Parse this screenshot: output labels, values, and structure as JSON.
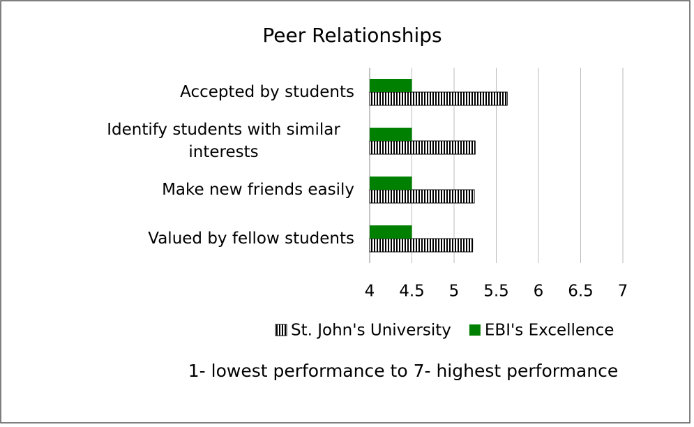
{
  "chart_data": {
    "type": "hbar",
    "title": "Peer Relationships",
    "categories": [
      "Accepted by students",
      "Identify students with similar interests",
      "Make new friends easily",
      "Valued by fellow students"
    ],
    "series": [
      {
        "name": "St. John's University",
        "color": "#000000",
        "values": [
          5.63,
          5.25,
          5.24,
          5.22
        ]
      },
      {
        "name": "EBI's Excellence",
        "color": "#008000",
        "values": [
          4.5,
          4.5,
          4.5,
          4.5
        ]
      }
    ],
    "xlim": [
      4,
      7
    ],
    "xticks": [
      4,
      4.5,
      5,
      5.5,
      6,
      6.5,
      7
    ],
    "grid": true,
    "annotation": "1- lowest performance to 7- highest performance"
  }
}
